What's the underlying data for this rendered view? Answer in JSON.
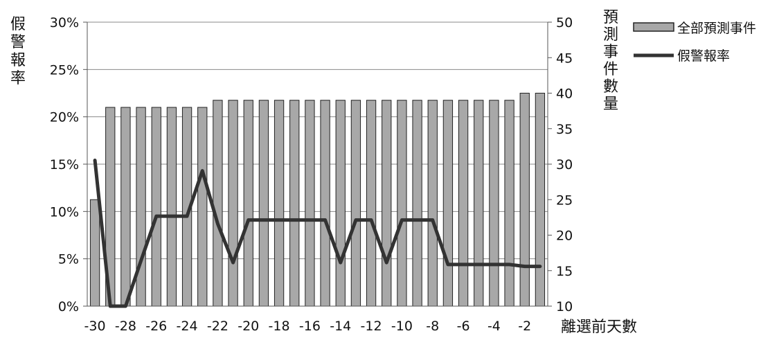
{
  "chart_data": {
    "type": "bar",
    "x": [
      -30,
      -29,
      -28,
      -27,
      -26,
      -25,
      -24,
      -23,
      -22,
      -21,
      -20,
      -19,
      -18,
      -17,
      -16,
      -15,
      -14,
      -13,
      -12,
      -11,
      -10,
      -9,
      -8,
      -7,
      -6,
      -5,
      -4,
      -3,
      -2,
      -1
    ],
    "x_tick_labels": [
      "-30",
      "-28",
      "-26",
      "-24",
      "-22",
      "-20",
      "-18",
      "-16",
      "-14",
      "-12",
      "-10",
      "-8",
      "-6",
      "-4",
      "-2"
    ],
    "xlabel": "離選前天數",
    "ylabel_left": "假警報率",
    "ylabel_right": "預測事件數量",
    "y_left_ticks": [
      "0%",
      "5%",
      "10%",
      "15%",
      "20%",
      "25%",
      "30%"
    ],
    "y_right_ticks": [
      "10",
      "15",
      "20",
      "25",
      "30",
      "35",
      "40",
      "45",
      "50"
    ],
    "ylim_left": [
      0,
      30
    ],
    "ylim_right": [
      10,
      50
    ],
    "grid": true,
    "legend_position": "top-right",
    "series": [
      {
        "name": "全部預測事件",
        "type": "bar",
        "axis": "right",
        "color": "#a8a8a8",
        "values": [
          25,
          38,
          38,
          38,
          38,
          38,
          38,
          38,
          39,
          39,
          39,
          39,
          39,
          39,
          39,
          39,
          39,
          39,
          39,
          39,
          39,
          39,
          39,
          39,
          39,
          39,
          39,
          39,
          40,
          40
        ]
      },
      {
        "name": "假警報率",
        "type": "line",
        "axis": "left",
        "color": "#333333",
        "values": [
          15.4,
          0,
          0,
          4.8,
          9.5,
          9.5,
          9.5,
          14.3,
          8.7,
          4.6,
          9.1,
          9.1,
          9.1,
          9.1,
          9.1,
          9.1,
          4.6,
          9.1,
          9.1,
          4.6,
          9.1,
          9.1,
          9.1,
          4.4,
          4.4,
          4.4,
          4.4,
          4.4,
          4.2,
          4.2
        ]
      }
    ]
  }
}
